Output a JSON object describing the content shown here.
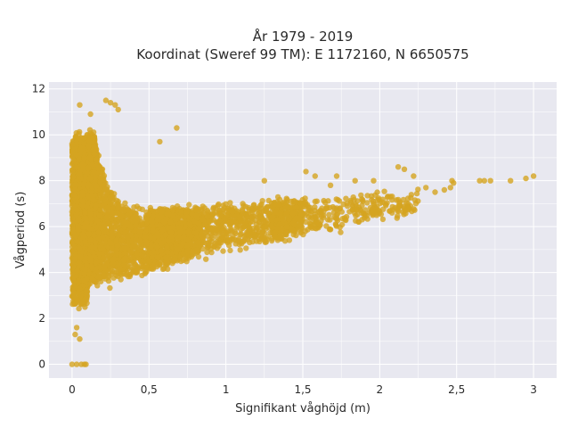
{
  "chart_data": {
    "type": "scatter",
    "title_line1": "År 1979 - 2019",
    "title_line2": "Koordinat (Sweref 99 TM): E 1172160, N 6650575",
    "xlabel": "Signifikant våghöjd (m)",
    "ylabel": "Vågperiod (s)",
    "xlim": [
      -0.15,
      3.15
    ],
    "ylim": [
      -0.6,
      12.3
    ],
    "x_ticks": [
      0,
      0.5,
      1,
      1.5,
      2,
      2.5,
      3
    ],
    "x_tick_labels": [
      "0",
      "0,5",
      "1",
      "1,5",
      "2",
      "2,5",
      "3"
    ],
    "y_ticks": [
      0,
      2,
      4,
      6,
      8,
      10,
      12
    ],
    "y_tick_labels": [
      "0",
      "2",
      "4",
      "6",
      "8",
      "10",
      "12"
    ],
    "grid": true,
    "background": "#e8e8f0",
    "marker_color": "#d4a420",
    "outliers": [
      [
        0.0,
        0.0
      ],
      [
        0.03,
        0.0
      ],
      [
        0.06,
        0.0
      ],
      [
        0.08,
        0.0
      ],
      [
        0.09,
        0.0
      ],
      [
        0.05,
        11.3
      ],
      [
        0.22,
        11.5
      ],
      [
        0.25,
        11.4
      ],
      [
        0.28,
        11.3
      ],
      [
        0.3,
        11.1
      ],
      [
        0.57,
        9.7
      ],
      [
        0.68,
        10.3
      ],
      [
        0.12,
        10.9
      ],
      [
        1.25,
        8.0
      ],
      [
        1.52,
        8.4
      ],
      [
        1.58,
        8.2
      ],
      [
        1.68,
        7.8
      ],
      [
        1.72,
        8.2
      ],
      [
        1.84,
        8.0
      ],
      [
        1.96,
        8.0
      ],
      [
        2.12,
        8.6
      ],
      [
        2.16,
        8.5
      ],
      [
        2.22,
        8.2
      ],
      [
        2.3,
        7.7
      ],
      [
        2.36,
        7.5
      ],
      [
        2.42,
        7.6
      ],
      [
        2.46,
        7.7
      ],
      [
        2.47,
        8.0
      ],
      [
        2.48,
        7.9
      ],
      [
        2.65,
        8.0
      ],
      [
        2.68,
        8.0
      ],
      [
        2.72,
        8.0
      ],
      [
        2.85,
        8.0
      ],
      [
        2.95,
        8.1
      ],
      [
        3.0,
        8.2
      ],
      [
        2.2,
        6.9
      ],
      [
        1.98,
        6.5
      ],
      [
        2.08,
        6.6
      ],
      [
        0.02,
        1.3
      ],
      [
        0.03,
        1.6
      ],
      [
        0.05,
        1.1
      ],
      [
        0.0,
        9.6
      ],
      [
        0.02,
        7.6
      ],
      [
        0.45,
        5.1
      ],
      [
        0.42,
        4.8
      ],
      [
        0.38,
        4.9
      ]
    ],
    "cloud_note": "dense point cloud of approx. 40 years of hourly values"
  }
}
